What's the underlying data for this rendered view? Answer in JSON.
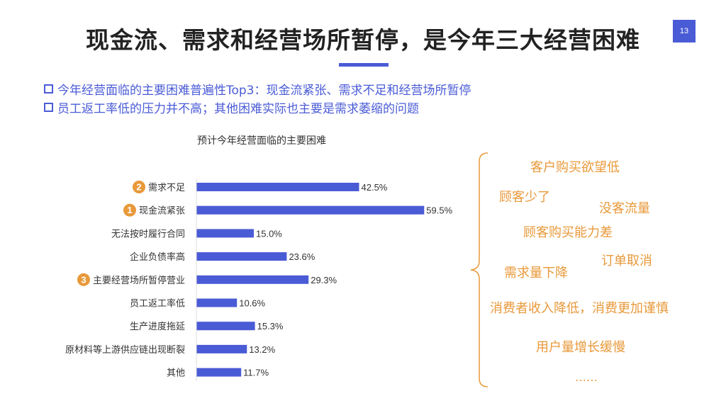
{
  "slide": {
    "title": "现金流、需求和经营场所暂停，是今年三大经营困难",
    "page_number": "13",
    "accent_color": "#4a5bd6",
    "highlight_color": "#e8993a"
  },
  "bullets": [
    "今年经营面临的主要困难普遍性Top3：现金流紧张、需求不足和经营场所暂停",
    "员工返工率低的压力并不高；其他困难实际也主要是需求萎缩的问题"
  ],
  "chart_data": {
    "type": "bar",
    "orientation": "horizontal",
    "title": "预计今年经营面临的主要困难",
    "categories": [
      "需求不足",
      "现金流紧张",
      "无法按时履行合同",
      "企业负债率高",
      "主要经营场所暂停营业",
      "员工返工率低",
      "生产进度拖延",
      "原材料等上游供应链出现断裂",
      "其他"
    ],
    "values": [
      42.5,
      59.5,
      15.0,
      23.6,
      29.3,
      10.6,
      15.3,
      13.2,
      11.7
    ],
    "value_labels": [
      "42.5%",
      "59.5%",
      "15.0%",
      "23.6%",
      "29.3%",
      "10.6%",
      "15.3%",
      "13.2%",
      "11.7%"
    ],
    "rank_badges": [
      "2",
      "1",
      "",
      "",
      "3",
      "",
      "",
      "",
      ""
    ],
    "bar_color": "#4a5bd6",
    "xlim": [
      0,
      60
    ],
    "grid": false,
    "legend": "none"
  },
  "word_cloud": [
    "客户购买欲望低",
    "顾客少了",
    "没客流量",
    "顾客购买能力差",
    "订单取消",
    "需求量下降",
    "消费者收入降低，消费更加谨慎",
    "用户量增长缓慢",
    "……"
  ]
}
